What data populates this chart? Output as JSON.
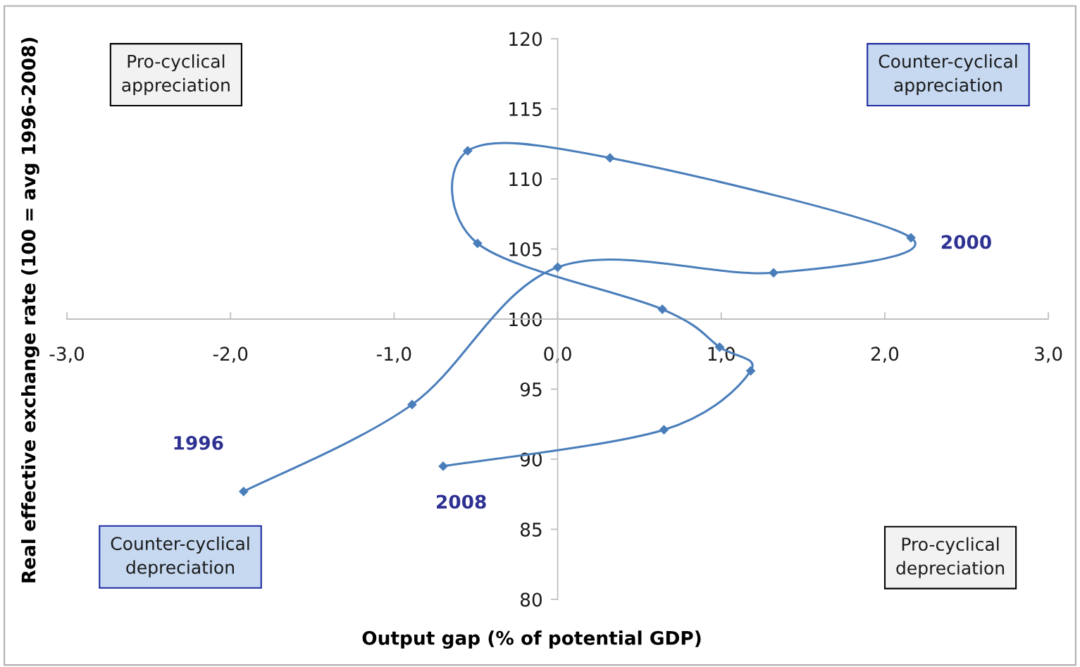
{
  "chart_data": {
    "type": "line",
    "xlabel": "Output gap (% of potential GDP)",
    "ylabel": "Real effective exchange rate (100 = avg 1996-2008)",
    "series": [
      {
        "color": "#4a7ebb",
        "x": [
          -1.92,
          -0.89,
          0.0,
          1.32,
          2.16,
          0.32,
          -0.55,
          -0.49,
          0.64,
          0.99,
          1.18,
          0.65,
          -0.7
        ],
        "values": [
          87.7,
          93.9,
          103.7,
          103.3,
          105.8,
          111.5,
          112.0,
          105.4,
          100.7,
          98.0,
          96.3,
          92.1,
          89.5
        ]
      }
    ],
    "marker": "diamond",
    "line_style": "solid",
    "grid": false,
    "legend": false,
    "xlim": [
      -3,
      3
    ],
    "xticks": [
      {
        "value": -3,
        "label": "-3,0"
      },
      {
        "value": -2,
        "label": "-2,0"
      },
      {
        "value": -1,
        "label": "-1,0"
      },
      {
        "value": 0,
        "label": "0,0"
      },
      {
        "value": 1,
        "label": "1,0"
      },
      {
        "value": 2,
        "label": "2,0"
      },
      {
        "value": 3,
        "label": "3,0"
      }
    ],
    "ylim": [
      80,
      120
    ],
    "yticks": [
      80,
      85,
      90,
      95,
      100,
      105,
      110,
      115,
      120
    ],
    "annotations": [
      "Pro-cyclical\nappreciation",
      "Counter-cyclical\nappreciation",
      "Counter-cyclical\ndepreciation",
      "Pro-cyclical\ndepreciation",
      {
        "text": "1996",
        "x": -1.92,
        "y": 87.7
      },
      {
        "text": "2000",
        "x": 2.16,
        "y": 105.8
      },
      {
        "text": "2008",
        "x": -0.7,
        "y": 89.5
      }
    ]
  }
}
